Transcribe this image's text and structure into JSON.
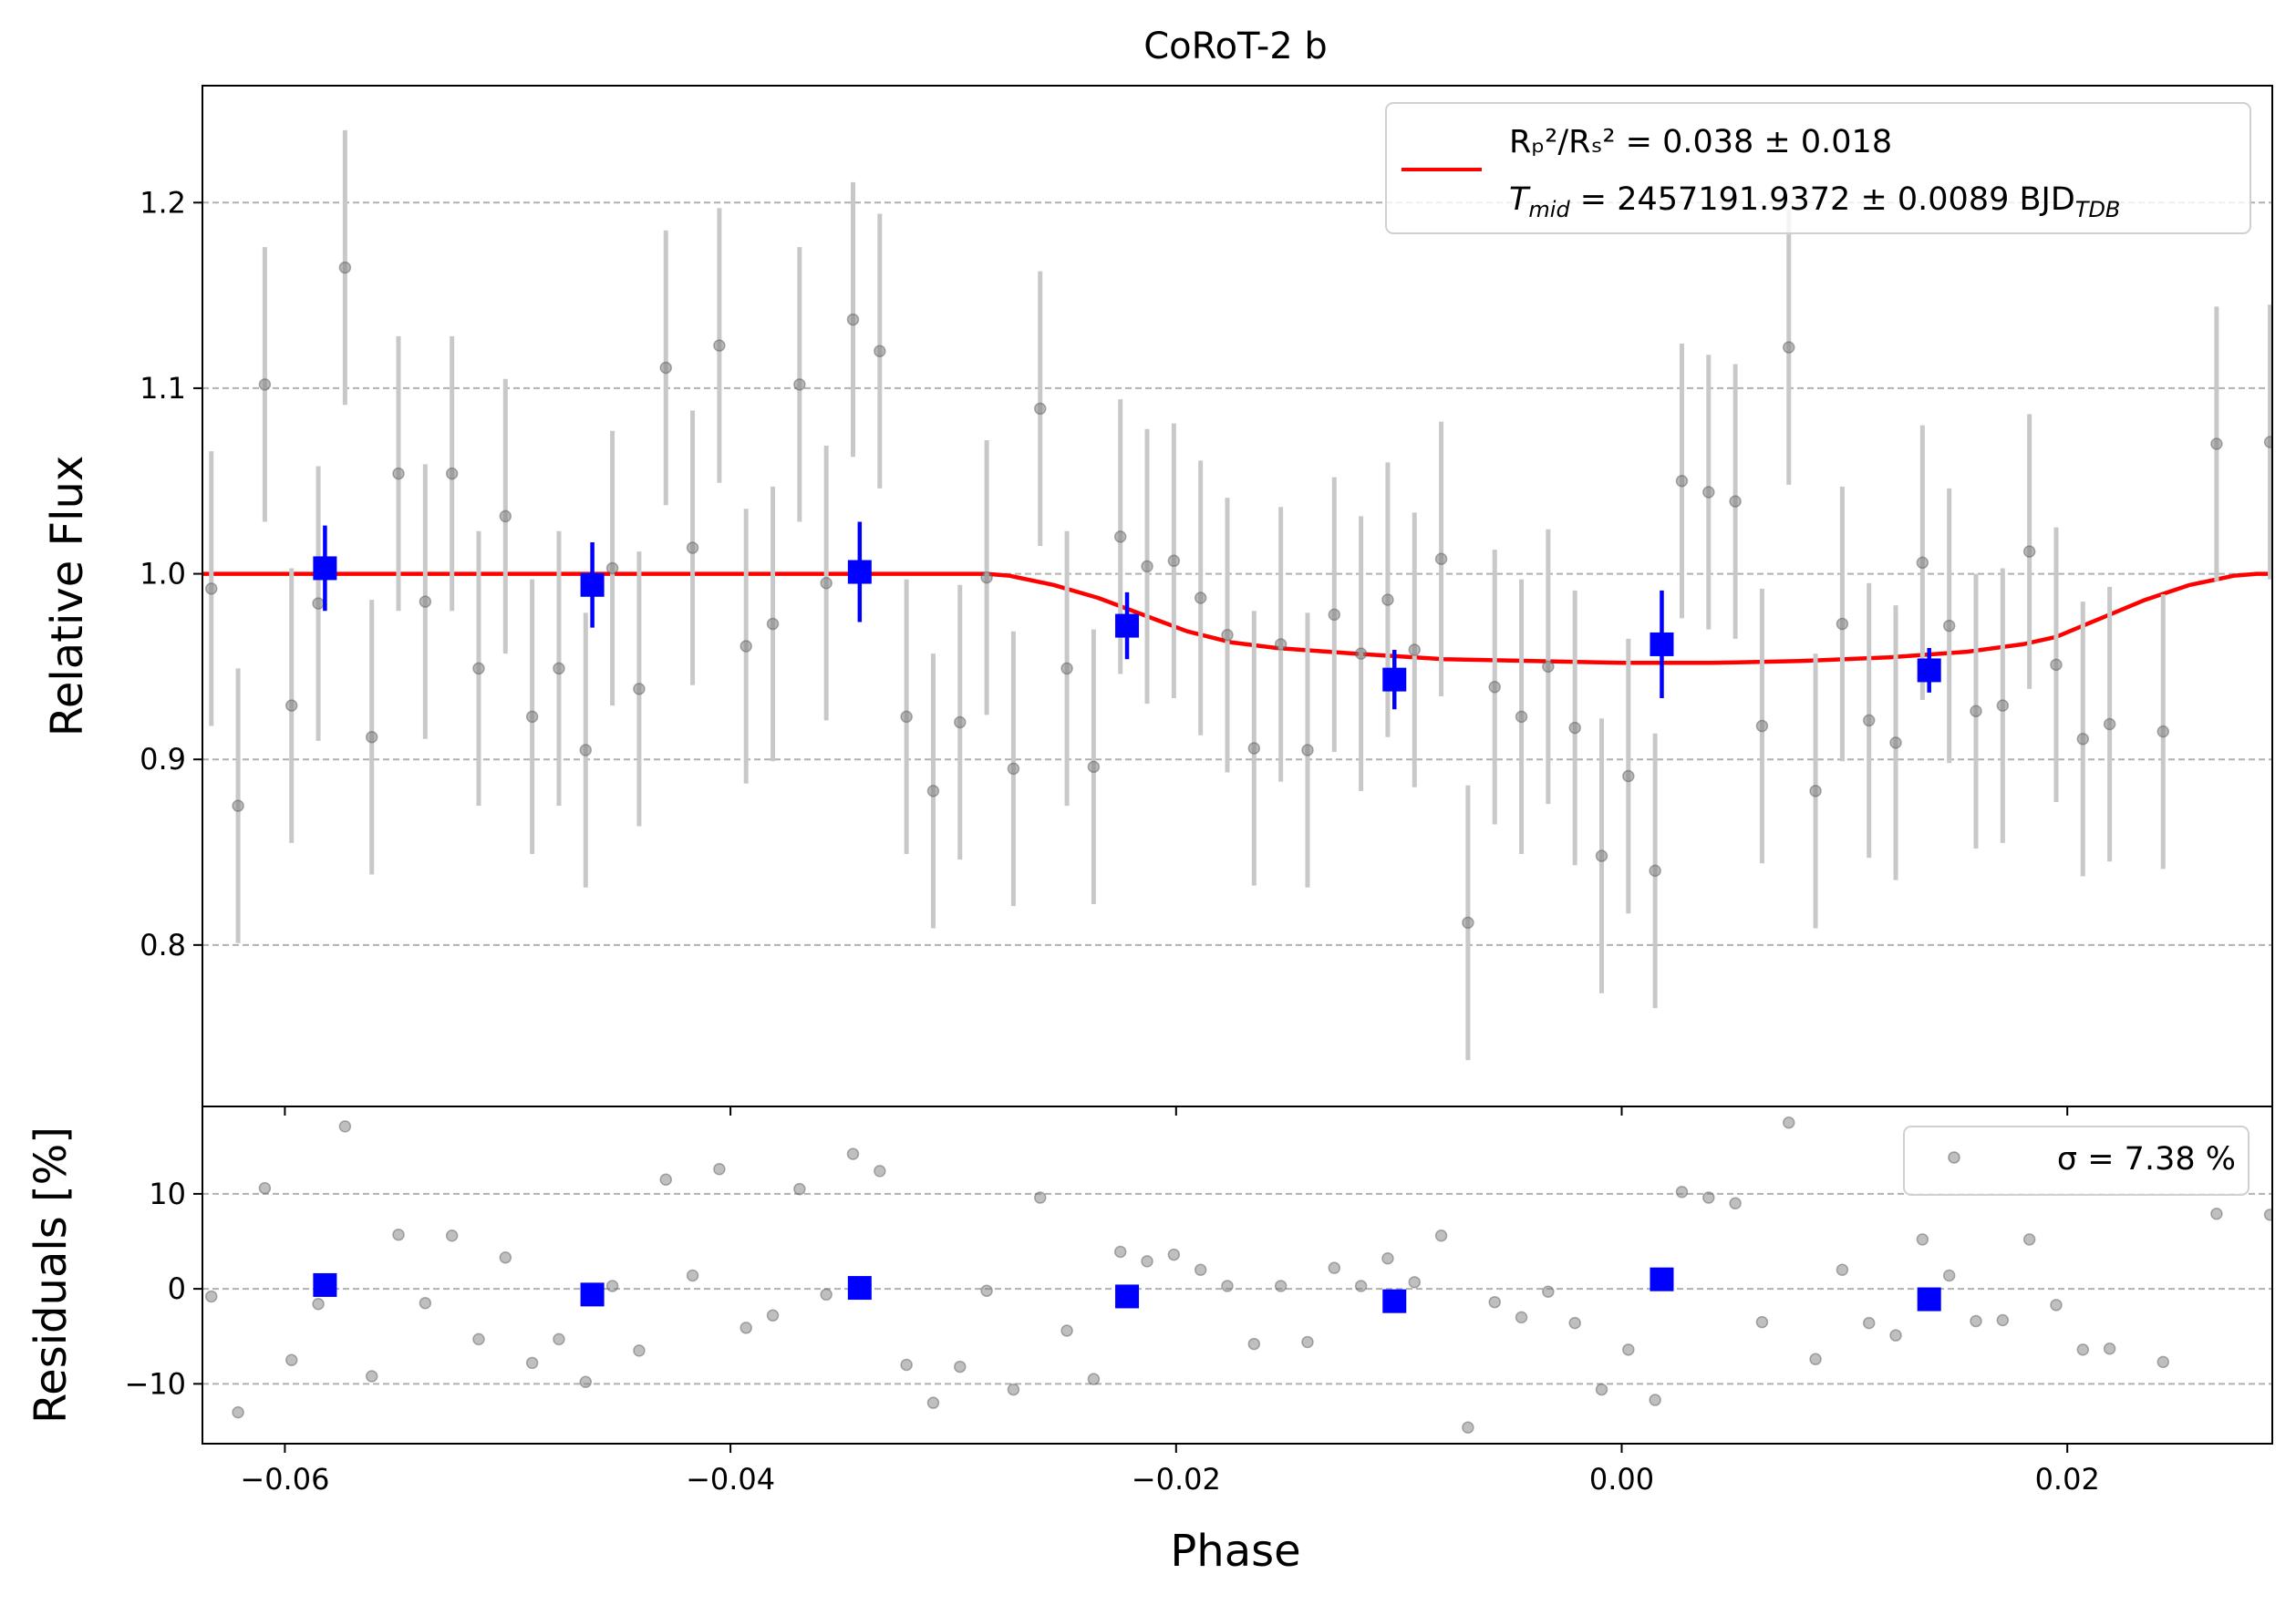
{
  "chart_data": {
    "type": "scatter",
    "title": "CoRoT-2 b",
    "xlabel": "Phase",
    "xlim": [
      -0.0637,
      0.0292
    ],
    "x_ticks": [
      -0.06,
      -0.04,
      -0.02,
      0.0,
      0.02
    ],
    "x_tick_labels": [
      "−0.06",
      "−0.04",
      "−0.02",
      "0.00",
      "0.02"
    ],
    "grid": "horizontal dashed",
    "panels": [
      {
        "name": "flux",
        "ylabel": "Relative Flux",
        "ylim": [
          0.713,
          1.263
        ],
        "y_ticks": [
          0.8,
          0.9,
          1.0,
          1.1,
          1.2
        ],
        "y_tick_labels": [
          "0.8",
          "0.9",
          "1.0",
          "1.1",
          "1.2"
        ],
        "legend_position": "upper right",
        "legend": {
          "model_line1": "Rₚ²/Rₛ² = 0.038 ± 0.018",
          "model_line2_main": "T",
          "model_line2_sub": "mid",
          "model_line2_rest": " = 2457191.9372 ± 0.0089 BJD",
          "model_line2_sub2": "TDB"
        },
        "series": [
          {
            "style": "gray-points-errorbars",
            "x": [
              -0.0633,
              -0.0621,
              -0.0609,
              -0.0597,
              -0.0585,
              -0.0573,
              -0.0561,
              -0.0549,
              -0.0537,
              -0.0525,
              -0.0513,
              -0.0501,
              -0.0489,
              -0.0477,
              -0.0465,
              -0.0453,
              -0.0441,
              -0.0429,
              -0.0417,
              -0.0405,
              -0.0393,
              -0.0381,
              -0.0369,
              -0.0357,
              -0.0345,
              -0.0333,
              -0.0321,
              -0.0309,
              -0.0297,
              -0.0285,
              -0.0273,
              -0.0261,
              -0.0249,
              -0.0237,
              -0.0225,
              -0.0213,
              -0.0201,
              -0.0189,
              -0.0177,
              -0.0165,
              -0.0153,
              -0.0141,
              -0.0129,
              -0.0117,
              -0.0105,
              -0.0093,
              -0.0081,
              -0.0069,
              -0.0057,
              -0.0045,
              -0.0033,
              -0.0021,
              -0.0009,
              0.0003,
              0.0015,
              0.0027,
              0.0039,
              0.0051,
              0.0063,
              0.0075,
              0.0087,
              0.0099,
              0.0111,
              0.0123,
              0.0135,
              0.0147,
              0.0159,
              0.0171,
              0.0183,
              0.0195,
              0.0207,
              0.0219,
              0.0243,
              0.0267,
              0.0291
            ],
            "y": [
              0.992,
              0.875,
              1.102,
              0.929,
              0.984,
              1.165,
              0.912,
              1.054,
              0.985,
              1.054,
              0.949,
              1.031,
              0.923,
              0.949,
              0.905,
              1.003,
              0.938,
              1.111,
              1.014,
              1.123,
              0.961,
              0.973,
              1.102,
              0.995,
              1.137,
              1.12,
              0.923,
              0.883,
              0.92,
              0.998,
              0.895,
              1.089,
              0.949,
              0.896,
              1.02,
              1.004,
              1.007,
              0.987,
              0.967,
              0.906,
              0.962,
              0.905,
              0.978,
              0.957,
              0.986,
              0.959,
              1.008,
              0.812,
              0.939,
              0.923,
              0.95,
              0.917,
              0.848,
              0.891,
              0.84,
              1.05,
              1.044,
              1.039,
              0.918,
              1.122,
              0.883,
              0.973,
              0.921,
              0.909,
              1.006,
              0.972,
              0.926,
              0.929,
              1.012,
              0.951,
              0.911,
              0.919,
              0.915,
              1.07,
              1.071
            ],
            "yerr": 0.074
          },
          {
            "style": "blue-binned-squares",
            "x": [
              -0.0582,
              -0.0462,
              -0.0342,
              -0.0222,
              -0.0102,
              0.0018,
              0.0138
            ],
            "y": [
              1.003,
              0.994,
              1.001,
              0.972,
              0.943,
              0.962,
              0.948
            ],
            "yerr": [
              0.023,
              0.023,
              0.027,
              0.018,
              0.016,
              0.029,
              0.012
            ]
          },
          {
            "style": "red-model-line",
            "x": [
              -0.0637,
              -0.0285,
              -0.0275,
              -0.0255,
              -0.0235,
              -0.0215,
              -0.0195,
              -0.0175,
              -0.0155,
              -0.012,
              -0.008,
              -0.004,
              0.0,
              0.004,
              0.008,
              0.012,
              0.0155,
              0.018,
              0.0195,
              0.0215,
              0.0235,
              0.0255,
              0.0275,
              0.0285,
              0.0292
            ],
            "y": [
              1.0,
              1.0,
              0.999,
              0.994,
              0.987,
              0.978,
              0.969,
              0.963,
              0.96,
              0.957,
              0.954,
              0.953,
              0.952,
              0.952,
              0.953,
              0.955,
              0.958,
              0.962,
              0.966,
              0.976,
              0.986,
              0.994,
              0.999,
              1.0,
              1.0
            ]
          }
        ]
      },
      {
        "name": "residuals",
        "ylabel": "Residuals [%]",
        "ylim": [
          -16.3,
          19.2
        ],
        "y_ticks": [
          -10,
          0,
          10
        ],
        "y_tick_labels": [
          "−10",
          "0",
          "10"
        ],
        "legend_position": "upper right",
        "legend": {
          "label": "σ = 7.38 %"
        },
        "series": [
          {
            "style": "gray-points",
            "x": [
              -0.0633,
              -0.0621,
              -0.0609,
              -0.0597,
              -0.0585,
              -0.0573,
              -0.0561,
              -0.0549,
              -0.0537,
              -0.0525,
              -0.0513,
              -0.0501,
              -0.0489,
              -0.0477,
              -0.0465,
              -0.0453,
              -0.0441,
              -0.0429,
              -0.0417,
              -0.0405,
              -0.0393,
              -0.0381,
              -0.0369,
              -0.0357,
              -0.0345,
              -0.0333,
              -0.0321,
              -0.0309,
              -0.0297,
              -0.0285,
              -0.0273,
              -0.0261,
              -0.0249,
              -0.0237,
              -0.0225,
              -0.0213,
              -0.0201,
              -0.0189,
              -0.0177,
              -0.0165,
              -0.0153,
              -0.0141,
              -0.0129,
              -0.0117,
              -0.0105,
              -0.0093,
              -0.0081,
              -0.0069,
              -0.0057,
              -0.0045,
              -0.0033,
              -0.0021,
              -0.0009,
              0.0003,
              0.0015,
              0.0027,
              0.0039,
              0.0051,
              0.0063,
              0.0075,
              0.0087,
              0.0099,
              0.0111,
              0.0123,
              0.0135,
              0.0147,
              0.0159,
              0.0171,
              0.0183,
              0.0195,
              0.0207,
              0.0219,
              0.0243,
              0.0267,
              0.0291
            ],
            "y": [
              -0.8,
              -13.0,
              10.6,
              -7.5,
              -1.6,
              17.1,
              -9.2,
              5.7,
              -1.5,
              5.6,
              -5.3,
              3.3,
              -7.8,
              -5.3,
              -9.8,
              0.3,
              -6.5,
              11.5,
              1.4,
              12.6,
              -4.1,
              -2.8,
              10.5,
              -0.6,
              14.2,
              12.4,
              -8.0,
              -12.0,
              -8.2,
              -0.2,
              -10.6,
              9.6,
              -4.4,
              -9.5,
              3.9,
              2.9,
              3.6,
              2.0,
              0.3,
              -5.8,
              0.3,
              -5.6,
              2.2,
              0.3,
              3.2,
              0.7,
              5.6,
              -14.6,
              -1.4,
              -3.0,
              -0.3,
              -3.6,
              -10.6,
              -6.4,
              -11.7,
              10.2,
              9.6,
              9.0,
              -3.5,
              17.5,
              -7.4,
              2.0,
              -3.6,
              -4.9,
              5.2,
              1.4,
              -3.4,
              -3.3,
              5.2,
              -1.7,
              -6.4,
              -6.3,
              -7.7,
              7.9,
              7.8
            ]
          },
          {
            "style": "blue-binned-squares",
            "x": [
              -0.0582,
              -0.0462,
              -0.0342,
              -0.0222,
              -0.0102,
              0.0018,
              0.0138
            ],
            "y": [
              0.4,
              -0.6,
              0.1,
              -0.8,
              -1.3,
              1.0,
              -1.1
            ]
          }
        ]
      }
    ]
  }
}
